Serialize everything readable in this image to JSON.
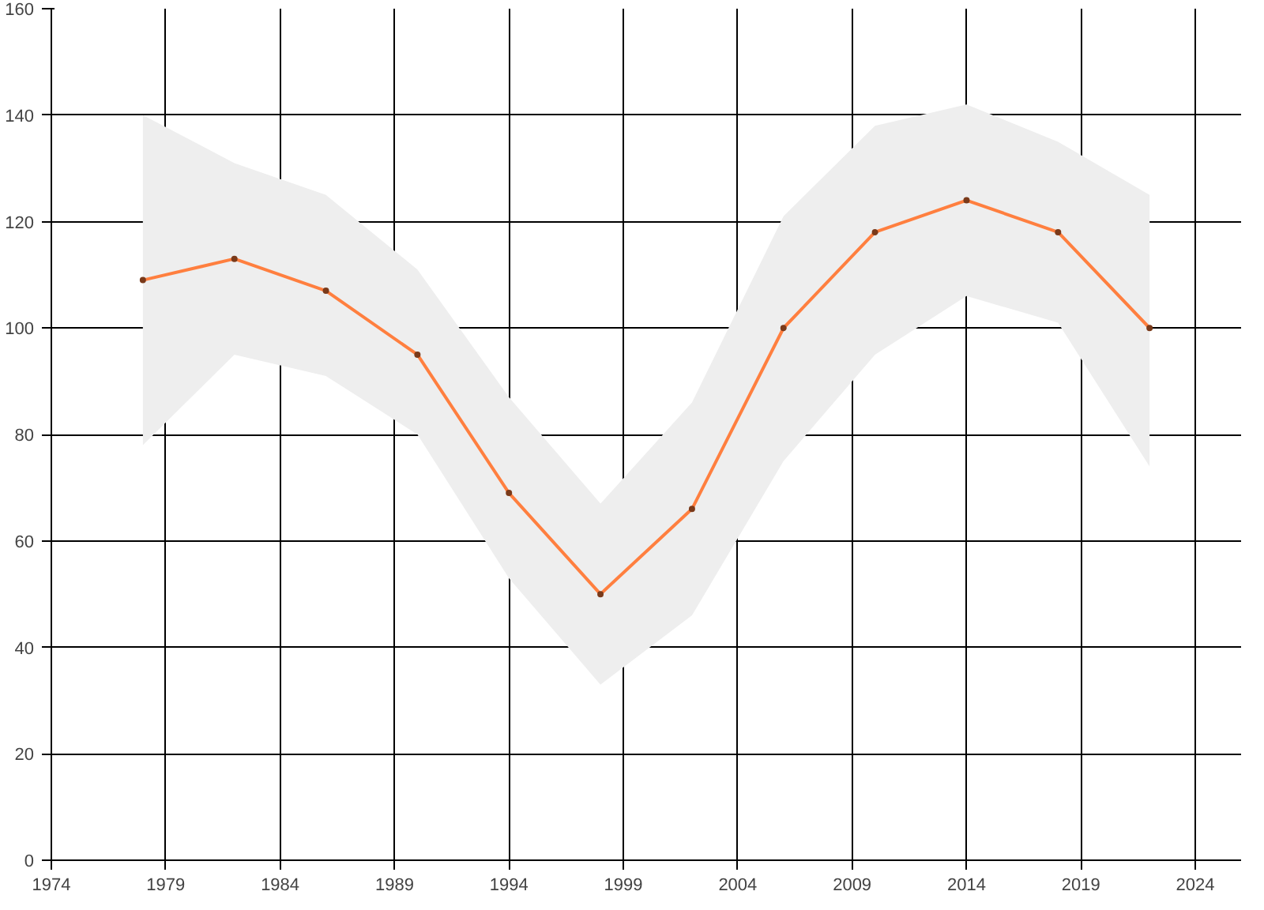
{
  "chart_data": {
    "type": "line",
    "x": [
      1978,
      1982,
      1986,
      1990,
      1994,
      1998,
      2002,
      2006,
      2010,
      2014,
      2018,
      2022
    ],
    "series": [
      {
        "color": "#ff7f3f",
        "values": [
          109,
          113,
          107,
          95,
          69,
          50,
          66,
          100,
          118,
          124,
          118,
          100
        ],
        "lower": [
          78,
          95,
          91,
          80,
          53,
          33,
          46,
          75,
          95,
          106,
          101,
          74
        ],
        "upper": [
          140,
          131,
          125,
          111,
          87,
          67,
          86,
          121,
          138,
          142,
          135,
          125
        ]
      }
    ],
    "xlim": [
      1974,
      2026
    ],
    "xticks": [
      1974,
      1979,
      1984,
      1989,
      1994,
      1999,
      2004,
      2009,
      2014,
      2019,
      2024
    ],
    "ylim": [
      0,
      160
    ],
    "yticks": [
      0,
      20,
      40,
      60,
      80,
      100,
      120,
      140,
      160
    ],
    "grid": true,
    "marker": "circle",
    "line_style": "solid"
  }
}
